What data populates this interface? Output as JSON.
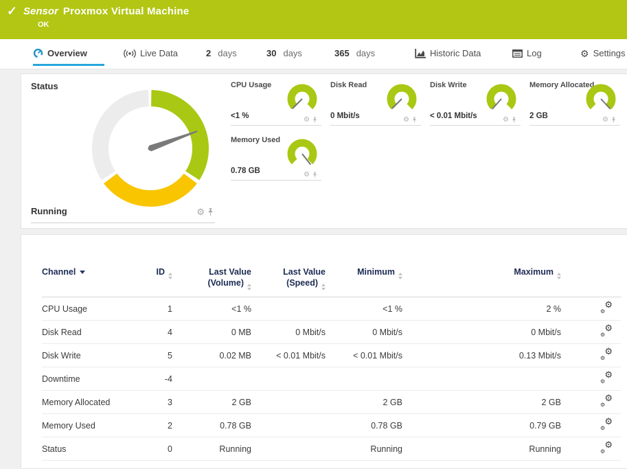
{
  "icons": {
    "check": "✓",
    "gear": "⚙"
  },
  "colors": {
    "header_green": "#b2c613",
    "gauge_green": "#a9c813",
    "gauge_yellow": "#f8c500",
    "gauge_gray": "#ececec",
    "needle_gray": "#7a7a7a",
    "active_tab_blue": "#27a5dc",
    "table_header_navy": "#1c2b52"
  },
  "header": {
    "kind_label": "Sensor",
    "title": "Proxmox Virtual Machine",
    "status": "OK"
  },
  "tabs": {
    "overview": "Overview",
    "live_data": "Live Data",
    "d2_num": "2",
    "d2_label": "days",
    "d30_num": "30",
    "d30_label": "days",
    "d365_num": "365",
    "d365_label": "days",
    "historic": "Historic Data",
    "log": "Log",
    "settings": "Settings"
  },
  "status_panel": {
    "title": "Status",
    "value": "Running",
    "gauge": {
      "segments": [
        {
          "from": 1,
          "to": 123,
          "color": "#a9c813"
        },
        {
          "from": 127,
          "to": 233,
          "color": "#f8c500"
        },
        {
          "from": 237,
          "to": 358,
          "color": "#ececec"
        }
      ],
      "needle_angle": 70
    }
  },
  "mini_gauges": [
    {
      "label": "CPU Usage",
      "value": "<1 %",
      "needle_angle": 225
    },
    {
      "label": "Disk Read",
      "value": "0 Mbit/s",
      "needle_angle": 225
    },
    {
      "label": "Disk Write",
      "value": "< 0.01 Mbit/s",
      "needle_angle": 222
    },
    {
      "label": "Memory Allocated",
      "value": "2 GB",
      "needle_angle": 137
    },
    {
      "label": "Memory Used",
      "value": "0.78 GB",
      "needle_angle": 142
    }
  ],
  "table": {
    "columns": [
      {
        "line1": "Channel"
      },
      {
        "line1": "ID"
      },
      {
        "line1": "Last Value",
        "line2": "(Volume)"
      },
      {
        "line1": "Last Value",
        "line2": "(Speed)"
      },
      {
        "line1": "Minimum"
      },
      {
        "line1": "Maximum"
      }
    ],
    "rows": [
      {
        "channel": "CPU Usage",
        "id": "1",
        "volume": "<1 %",
        "speed": "",
        "min": "<1 %",
        "max": "2 %"
      },
      {
        "channel": "Disk Read",
        "id": "4",
        "volume": "0 MB",
        "speed": "0 Mbit/s",
        "min": "0 Mbit/s",
        "max": "0 Mbit/s"
      },
      {
        "channel": "Disk Write",
        "id": "5",
        "volume": "0.02 MB",
        "speed": "< 0.01 Mbit/s",
        "min": "< 0.01 Mbit/s",
        "max": "0.13 Mbit/s"
      },
      {
        "channel": "Downtime",
        "id": "-4",
        "volume": "",
        "speed": "",
        "min": "",
        "max": ""
      },
      {
        "channel": "Memory Allocated",
        "id": "3",
        "volume": "2 GB",
        "speed": "",
        "min": "2 GB",
        "max": "2 GB"
      },
      {
        "channel": "Memory Used",
        "id": "2",
        "volume": "0.78 GB",
        "speed": "",
        "min": "0.78 GB",
        "max": "0.79 GB"
      },
      {
        "channel": "Status",
        "id": "0",
        "volume": "Running",
        "speed": "",
        "min": "Running",
        "max": "Running"
      }
    ]
  }
}
